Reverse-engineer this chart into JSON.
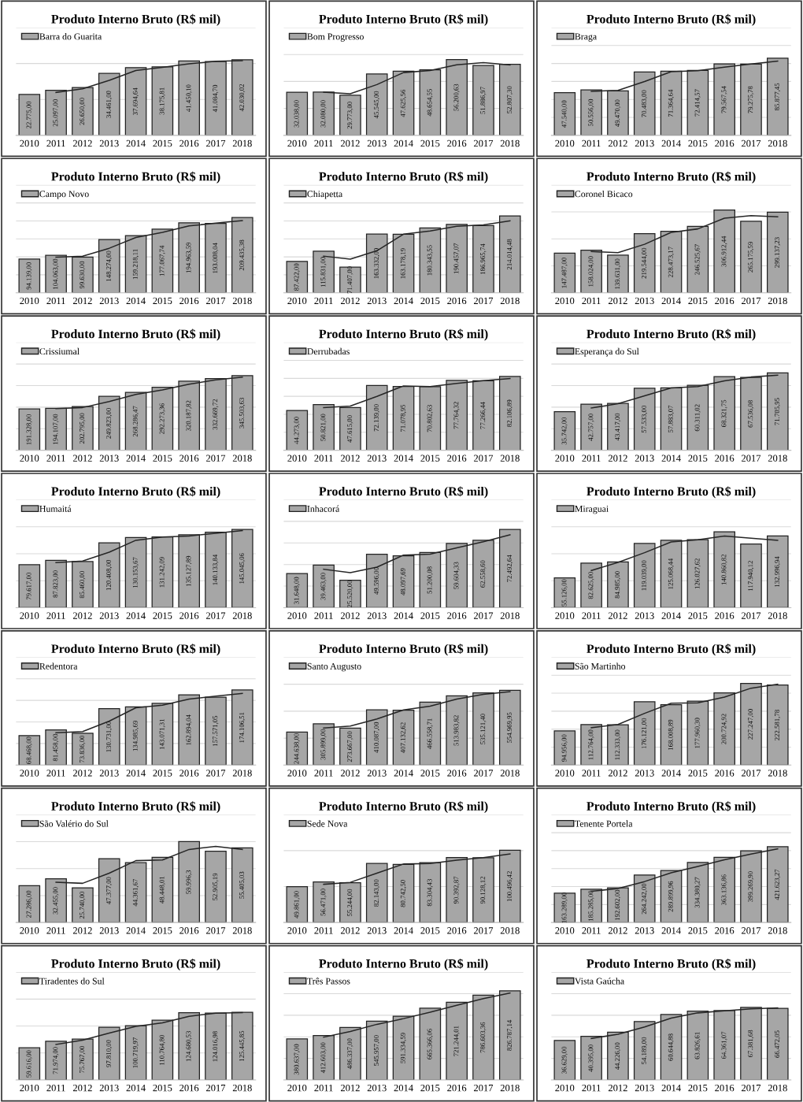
{
  "chart_data": [
    {
      "type": "bar",
      "title": "Produto Interno Bruto (R$ mil)",
      "categories": [
        "2010",
        "2011",
        "2012",
        "2013",
        "2014",
        "2015",
        "2016",
        "2017",
        "2018"
      ],
      "legend": "top left",
      "grid": "y",
      "ylim": [
        0,
        60000
      ],
      "yticks": [
        {
          "value": 0,
          "label": null
        },
        {
          "value": 20000,
          "label": null
        },
        {
          "value": 40000,
          "label": null
        },
        {
          "value": 60000,
          "label": null
        }
      ],
      "series": [
        {
          "name": "Barra do Guarita",
          "color": "#a6a6a6",
          "values": [
            22775.0,
            25097.0,
            26650.0,
            34461.0,
            37694.64,
            38175.81,
            41450.1,
            41084.7,
            42030.02
          ],
          "value_labels": [
            "22.775,00",
            "25.097,00",
            "26.650,00",
            "34.461,00",
            "37.694,64",
            "38.175,81",
            "41.450,10",
            "41.084,70",
            "42.030,02"
          ]
        },
        {
          "type": "line",
          "color": "#262626",
          "values": [
            null,
            23900,
            25900,
            30600,
            36100,
            37900,
            39800,
            41300,
            41600
          ]
        }
      ]
    },
    {
      "type": "bar",
      "title": "Produto Interno Bruto (R$ mil)",
      "categories": [
        "2010",
        "2011",
        "2012",
        "2013",
        "2014",
        "2015",
        "2016",
        "2017",
        "2018"
      ],
      "legend": "top left",
      "grid": "y",
      "ylim": [
        0,
        80000
      ],
      "yticks": [
        {
          "value": 0,
          "label": null
        },
        {
          "value": 20000,
          "label": null
        },
        {
          "value": 40000,
          "label": null
        },
        {
          "value": 60000,
          "label": null
        },
        {
          "value": 80000,
          "label": null
        }
      ],
      "series": [
        {
          "name": "Bom Progresso",
          "color": "#a6a6a6",
          "values": [
            32038.0,
            32080.0,
            29773.0,
            45545.0,
            47625.56,
            48654.55,
            56200.63,
            51886.97,
            52807.3
          ],
          "value_labels": [
            "32.038,00",
            "32.080,00",
            "29.773,00",
            "45.545,00",
            "47.625,56",
            "48.654,55",
            "56.200,63",
            "51.886,97",
            "52.807,30"
          ]
        },
        {
          "type": "line",
          "color": "#262626",
          "values": [
            null,
            32100,
            30900,
            37700,
            46600,
            48100,
            52400,
            54000,
            52300
          ]
        }
      ]
    },
    {
      "type": "bar",
      "title": "Produto Interno Bruto (R$ mil)",
      "categories": [
        "2010",
        "2011",
        "2012",
        "2013",
        "2014",
        "2015",
        "2016",
        "2017",
        "2018"
      ],
      "legend": "top left",
      "grid": "y",
      "ylim": [
        0,
        120000
      ],
      "yticks": [
        {
          "value": 0,
          "label": null
        },
        {
          "value": 20000,
          "label": null
        },
        {
          "value": 40000,
          "label": null
        },
        {
          "value": 60000,
          "label": null
        },
        {
          "value": 80000,
          "label": null
        },
        {
          "value": 100000,
          "label": null
        },
        {
          "value": 120000,
          "label": null
        }
      ],
      "series": [
        {
          "name": "Braga",
          "color": "#a6a6a6",
          "values": [
            47540.0,
            50556.0,
            49470.0,
            70483.0,
            71364.64,
            72414.57,
            79567.54,
            79275.78,
            85877.45
          ],
          "value_labels": [
            "47.540,00",
            "50.556,00",
            "49.470,00",
            "70.483,00",
            "71.364,64",
            "72.414,57",
            "79.567,54",
            "79.275,78",
            "85.877,45"
          ]
        },
        {
          "type": "line",
          "color": "#262626",
          "values": [
            null,
            49000,
            50000,
            60000,
            70900,
            71900,
            76000,
            79400,
            82600
          ]
        }
      ]
    },
    {
      "type": "bar",
      "title": "Produto Interno Bruto (R$ mil)",
      "categories": [
        "2010",
        "2011",
        "2012",
        "2013",
        "2014",
        "2015",
        "2016",
        "2017",
        "2018"
      ],
      "legend": "top left",
      "grid": "y",
      "ylim": [
        0,
        300000
      ],
      "yticks": [
        {
          "value": 0,
          "label": null
        },
        {
          "value": 50000,
          "label": null
        },
        {
          "value": 100000,
          "label": null
        },
        {
          "value": 150000,
          "label": null
        },
        {
          "value": 200000,
          "label": null
        },
        {
          "value": 250000,
          "label": null
        },
        {
          "value": 300000,
          "label": null
        }
      ],
      "series": [
        {
          "name": "Campo Novo",
          "color": "#a6a6a6",
          "values": [
            94139.0,
            104063.0,
            99630.0,
            148274.0,
            159218.11,
            177067.74,
            194963.59,
            193008.04,
            209435.38
          ],
          "value_labels": [
            "94.139,00",
            "104.063,00",
            "99.630,00",
            "148.274,00",
            "159.218,11",
            "177.067,74",
            "194.963,59",
            "193.008,04",
            "209.435,38"
          ]
        },
        {
          "type": "line",
          "color": "#262626",
          "values": [
            null,
            99100,
            101800,
            124000,
            154000,
            168000,
            186000,
            194000,
            201000
          ]
        }
      ]
    },
    {
      "type": "bar",
      "title": "Produto Interno Bruto (R$ mil)",
      "categories": [
        "2010",
        "2011",
        "2012",
        "2013",
        "2014",
        "2015",
        "2016",
        "2017",
        "2018"
      ],
      "legend": "top left",
      "grid": "y",
      "ylim": [
        0,
        300000
      ],
      "yticks": [
        {
          "value": 0,
          "label": null
        },
        {
          "value": 50000,
          "label": null
        },
        {
          "value": 100000,
          "label": null
        },
        {
          "value": 150000,
          "label": null
        },
        {
          "value": 200000,
          "label": null
        },
        {
          "value": 250000,
          "label": null
        },
        {
          "value": 300000,
          "label": null
        }
      ],
      "series": [
        {
          "name": "Chiapetta",
          "color": "#a6a6a6",
          "values": [
            87422.0,
            115831.0,
            71407.0,
            163332.0,
            163178.19,
            180343.55,
            190457.07,
            186965.74,
            214014.48
          ],
          "value_labels": [
            "87.422,00",
            "115.831,00",
            "71.407,00",
            "163.332,00",
            "163.178,19",
            "180.343,55",
            "190.457,07",
            "186.965,74",
            "214.014,48"
          ]
        },
        {
          "type": "line",
          "color": "#262626",
          "values": [
            null,
            102000,
            93600,
            117000,
            163000,
            172000,
            185000,
            189000,
            200000
          ]
        }
      ]
    },
    {
      "type": "bar",
      "title": "Produto Interno Bruto (R$ mil)",
      "categories": [
        "2010",
        "2011",
        "2012",
        "2013",
        "2014",
        "2015",
        "2016",
        "2017",
        "2018"
      ],
      "legend": "top left",
      "grid": "y",
      "ylim": [
        0,
        400000
      ],
      "yticks": [
        {
          "value": 0,
          "label": null
        },
        {
          "value": 100000,
          "label": null
        },
        {
          "value": 200000,
          "label": null
        },
        {
          "value": 300000,
          "label": null
        },
        {
          "value": 400000,
          "label": null
        }
      ],
      "series": [
        {
          "name": "Coronel Bicaco",
          "color": "#a6a6a6",
          "values": [
            147487.0,
            158024.0,
            139631.0,
            219544.0,
            228473.17,
            246525.67,
            306912.44,
            265175.59,
            299137.23
          ],
          "value_labels": [
            "147.487,00",
            "158.024,00",
            "139.631,00",
            "219.544,00",
            "228.473,17",
            "246.525,67",
            "306.912,44",
            "265.175,59",
            "299.137,23"
          ]
        },
        {
          "type": "line",
          "color": "#262626",
          "values": [
            null,
            153000,
            149000,
            180000,
            224000,
            237000,
            277000,
            286000,
            282000
          ]
        }
      ]
    },
    {
      "type": "bar",
      "title": "Produto Interno Bruto (R$ mil)",
      "categories": [
        "2010",
        "2011",
        "2012",
        "2013",
        "2014",
        "2015",
        "2016",
        "2017",
        "2018"
      ],
      "legend": "top left",
      "grid": "y",
      "ylim": [
        0,
        500000
      ],
      "yticks": [
        {
          "value": 0,
          "label": null
        },
        {
          "value": 100000,
          "label": null
        },
        {
          "value": 200000,
          "label": null
        },
        {
          "value": 300000,
          "label": null
        },
        {
          "value": 400000,
          "label": null
        },
        {
          "value": 500000,
          "label": null
        }
      ],
      "series": [
        {
          "name": "Crissiumal",
          "color": "#a6a6a6",
          "values": [
            191328.0,
            194107.0,
            202795.0,
            249823.0,
            268286.47,
            292273.36,
            320187.82,
            332669.72,
            345503.63
          ],
          "value_labels": [
            "191.328,00",
            "194.107,00",
            "202.795,00",
            "249.823,00",
            "268.286,47",
            "292.273,36",
            "320.187,82",
            "332.669,72",
            "345.503,63"
          ]
        },
        {
          "type": "line",
          "color": "#262626",
          "values": [
            null,
            193000,
            198000,
            226000,
            259000,
            280000,
            306000,
            326000,
            339000
          ]
        }
      ]
    },
    {
      "type": "bar",
      "title": "Produto Interno Bruto (R$ mil)",
      "categories": [
        "2010",
        "2011",
        "2012",
        "2013",
        "2014",
        "2015",
        "2016",
        "2017",
        "2018"
      ],
      "legend": "top left",
      "grid": "y",
      "ylim": [
        0,
        120000
      ],
      "yticks": [
        {
          "value": 0,
          "label": null
        },
        {
          "value": 20000,
          "label": null
        },
        {
          "value": 40000,
          "label": null
        },
        {
          "value": 60000,
          "label": null
        },
        {
          "value": 80000,
          "label": null
        },
        {
          "value": 100000,
          "label": null
        },
        {
          "value": 120000,
          "label": null
        }
      ],
      "series": [
        {
          "name": "Derrubadas",
          "color": "#a6a6a6",
          "values": [
            44273.0,
            50821.0,
            47615.0,
            72139.0,
            71078.95,
            70802.63,
            77764.32,
            77266.44,
            82106.89
          ],
          "value_labels": [
            "44.273,00",
            "50.821,00",
            "47.615,00",
            "72.139,00",
            "71.078,95",
            "70.802,63",
            "77.764,32",
            "77.266,44",
            "82.106,89"
          ]
        },
        {
          "type": "line",
          "color": "#262626",
          "values": [
            null,
            47500,
            49200,
            59900,
            71600,
            70900,
            74300,
            77500,
            79700
          ]
        }
      ]
    },
    {
      "type": "bar",
      "title": "Produto Interno Bruto (R$ mil)",
      "categories": [
        "2010",
        "2011",
        "2012",
        "2013",
        "2014",
        "2015",
        "2016",
        "2017",
        "2018"
      ],
      "legend": "top left",
      "grid": "y",
      "ylim": [
        0,
        100000
      ],
      "yticks": [
        {
          "value": 0,
          "label": null
        },
        {
          "value": 20000,
          "label": null
        },
        {
          "value": 40000,
          "label": null
        },
        {
          "value": 60000,
          "label": null
        },
        {
          "value": 80000,
          "label": null
        },
        {
          "value": 100000,
          "label": null
        }
      ],
      "series": [
        {
          "name": "Esperança do Sul",
          "color": "#a6a6a6",
          "values": [
            35742.0,
            42757.0,
            43417.0,
            57533.0,
            57883.07,
            60311.02,
            68321.75,
            67536.08,
            71705.95
          ],
          "value_labels": [
            "35.742,00",
            "42.757,00",
            "43.417,00",
            "57.533,00",
            "57.883,07",
            "60.311,02",
            "68.321,75",
            "67.536,08",
            "71.705,95"
          ]
        },
        {
          "type": "line",
          "color": "#262626",
          "values": [
            null,
            39200,
            43100,
            50500,
            57700,
            59100,
            64300,
            67900,
            69600
          ]
        }
      ]
    },
    {
      "type": "bar",
      "title": "Produto Interno Bruto (R$ mil)",
      "categories": [
        "2010",
        "2011",
        "2012",
        "2013",
        "2014",
        "2015",
        "2016",
        "2017",
        "2018"
      ],
      "legend": "top left",
      "grid": "y",
      "ylim": [
        0,
        200000
      ],
      "yticks": [
        {
          "value": 0,
          "label": null
        },
        {
          "value": 50000,
          "label": null
        },
        {
          "value": 100000,
          "label": null
        },
        {
          "value": 150000,
          "label": null
        },
        {
          "value": 200000,
          "label": null
        }
      ],
      "series": [
        {
          "name": "Humaitá",
          "color": "#a6a6a6",
          "values": [
            79617.0,
            87823.0,
            85460.0,
            120408.0,
            130153.67,
            131242.09,
            135127.89,
            140133.84,
            145045.06
          ],
          "value_labels": [
            "79.617,00",
            "87.823,00",
            "85.460,00",
            "120.408,00",
            "130.153,67",
            "131.242,09",
            "135.127,89",
            "140.133,84",
            "145.045,06"
          ]
        },
        {
          "type": "line",
          "color": "#262626",
          "values": [
            null,
            83700,
            86600,
            103000,
            125000,
            131000,
            133000,
            138000,
            143000
          ]
        }
      ]
    },
    {
      "type": "bar",
      "title": "Produto Interno Bruto (R$ mil)",
      "categories": [
        "2010",
        "2011",
        "2012",
        "2013",
        "2014",
        "2015",
        "2016",
        "2017",
        "2018"
      ],
      "legend": "top left",
      "grid": "y",
      "ylim": [
        0,
        100000
      ],
      "yticks": [
        {
          "value": 0,
          "label": null
        },
        {
          "value": 20000,
          "label": null
        },
        {
          "value": 40000,
          "label": null
        },
        {
          "value": 60000,
          "label": null
        },
        {
          "value": 80000,
          "label": null
        },
        {
          "value": 100000,
          "label": null
        }
      ],
      "series": [
        {
          "name": "Inhacorá",
          "color": "#a6a6a6",
          "values": [
            31648.0,
            39463.0,
            25520.0,
            49596.0,
            48097.69,
            51200.08,
            59604.33,
            62558.6,
            72492.64
          ],
          "value_labels": [
            "31.648,00",
            "39.463,00",
            "25.520,00",
            "49.596,00",
            "48.097,69",
            "51.200,08",
            "59.604,33",
            "62.558,60",
            "72.492,64"
          ]
        },
        {
          "type": "line",
          "color": "#262626",
          "values": [
            null,
            35600,
            32500,
            37600,
            48800,
            49600,
            55400,
            61100,
            67500
          ]
        }
      ]
    },
    {
      "type": "bar",
      "title": "Produto Interno Bruto (R$ mil)",
      "categories": [
        "2010",
        "2011",
        "2012",
        "2013",
        "2014",
        "2015",
        "2016",
        "2017",
        "2018"
      ],
      "legend": "top left",
      "grid": "y",
      "ylim": [
        0,
        200000
      ],
      "yticks": [
        {
          "value": 0,
          "label": null
        },
        {
          "value": 50000,
          "label": null
        },
        {
          "value": 100000,
          "label": null
        },
        {
          "value": 150000,
          "label": null
        },
        {
          "value": 200000,
          "label": null
        }
      ],
      "series": [
        {
          "name": "Miraguai",
          "color": "#a6a6a6",
          "values": [
            55126.0,
            82625.0,
            84985.0,
            119039.0,
            125068.44,
            126027.62,
            140860.82,
            117940.12,
            132996.94
          ],
          "value_labels": [
            "55.126,00",
            "82.625,00",
            "84.985,00",
            "119.039,00",
            "125.068,44",
            "126.027,62",
            "140.860,82",
            "117.940,12",
            "132.996,94"
          ]
        },
        {
          "type": "line",
          "color": "#262626",
          "values": [
            null,
            68900,
            83800,
            102000,
            122000,
            126000,
            133000,
            129000,
            125000
          ]
        }
      ]
    },
    {
      "type": "bar",
      "title": "Produto Interno Bruto (R$ mil)",
      "categories": [
        "2010",
        "2011",
        "2012",
        "2013",
        "2014",
        "2015",
        "2016",
        "2017",
        "2018"
      ],
      "legend": "top left",
      "grid": "y",
      "ylim": [
        0,
        250000
      ],
      "yticks": [
        {
          "value": 0,
          "label": null
        },
        {
          "value": 50000,
          "label": null
        },
        {
          "value": 100000,
          "label": null
        },
        {
          "value": 150000,
          "label": null
        },
        {
          "value": 200000,
          "label": null
        },
        {
          "value": 250000,
          "label": null
        }
      ],
      "series": [
        {
          "name": "Redentora",
          "color": "#a6a6a6",
          "values": [
            68468.0,
            81458.0,
            73836.0,
            130731.0,
            134985.69,
            143071.31,
            162894.04,
            157571.05,
            174106.51
          ],
          "value_labels": [
            "68.468,00",
            "81.458,00",
            "73.836,00",
            "130.731,00",
            "134.985,69",
            "143.071,31",
            "162.894,04",
            "157.571,05",
            "174.106,51"
          ]
        },
        {
          "type": "line",
          "color": "#262626",
          "values": [
            null,
            75000,
            77600,
            102000,
            133000,
            139000,
            153000,
            160000,
            166000
          ]
        }
      ]
    },
    {
      "type": "bar",
      "title": "Produto Interno Bruto (R$ mil)",
      "categories": [
        "2010",
        "2011",
        "2012",
        "2013",
        "2014",
        "2015",
        "2016",
        "2017",
        "2018"
      ],
      "legend": "top left",
      "grid": "y",
      "ylim": [
        0,
        800000
      ],
      "yticks": [
        {
          "value": 0,
          "label": null
        },
        {
          "value": 200000,
          "label": null
        },
        {
          "value": 400000,
          "label": null
        },
        {
          "value": 600000,
          "label": null
        },
        {
          "value": 800000,
          "label": null
        }
      ],
      "series": [
        {
          "name": "Santo Augusto",
          "color": "#a6a6a6",
          "values": [
            244638.0,
            305899.0,
            273667.0,
            410087.0,
            407132.62,
            466558.71,
            513983.82,
            535121.4,
            554969.95
          ],
          "value_labels": [
            "244.638,00",
            "305.899,00",
            "273.667,00",
            "410.087,00",
            "407.132,62",
            "466.558,71",
            "513.983,82",
            "535.121,40",
            "554.969,95"
          ]
        },
        {
          "type": "line",
          "color": "#262626",
          "values": [
            null,
            275000,
            290000,
            342000,
            409000,
            437000,
            490000,
            525000,
            545000
          ]
        }
      ]
    },
    {
      "type": "bar",
      "title": "Produto Interno Bruto (R$ mil)",
      "categories": [
        "2010",
        "2011",
        "2012",
        "2013",
        "2014",
        "2015",
        "2016",
        "2017",
        "2018"
      ],
      "legend": "top left",
      "grid": "y",
      "ylim": [
        0,
        300000
      ],
      "yticks": [
        {
          "value": 0,
          "label": null
        },
        {
          "value": 50000,
          "label": null
        },
        {
          "value": 100000,
          "label": null
        },
        {
          "value": 150000,
          "label": null
        },
        {
          "value": 200000,
          "label": null
        },
        {
          "value": 250000,
          "label": null
        },
        {
          "value": 300000,
          "label": null
        }
      ],
      "series": [
        {
          "name": "São Martinho",
          "color": "#a6a6a6",
          "values": [
            94956.0,
            112764.0,
            112333.0,
            176121.0,
            168008.89,
            177960.3,
            200724.92,
            227247.0,
            222581.78
          ],
          "value_labels": [
            "94.956,00",
            "112.764,00",
            "112.333,00",
            "176.121,00",
            "168.008,89",
            "177.960,30",
            "200.724,92",
            "227.247,00",
            "222.581,78"
          ]
        },
        {
          "type": "line",
          "color": "#262626",
          "values": [
            null,
            104000,
            113000,
            144000,
            172000,
            173000,
            189000,
            214000,
            225000
          ]
        }
      ]
    },
    {
      "type": "bar",
      "title": "Produto Interno Bruto (R$ mil)",
      "categories": [
        "2010",
        "2011",
        "2012",
        "2013",
        "2014",
        "2015",
        "2016",
        "2017",
        "2018"
      ],
      "legend": "top left",
      "grid": "y",
      "ylim": [
        0,
        80000
      ],
      "yticks": [
        {
          "value": 0,
          "label": null
        },
        {
          "value": 20000,
          "label": null
        },
        {
          "value": 40000,
          "label": null
        },
        {
          "value": 60000,
          "label": null
        },
        {
          "value": 80000,
          "label": null
        }
      ],
      "series": [
        {
          "name": "São Valério do Sul",
          "color": "#a6a6a6",
          "values": [
            27286.0,
            32455.0,
            25740.0,
            47377.0,
            44361.67,
            48448.01,
            59996.3,
            52905.19,
            55405.03
          ],
          "value_labels": [
            "27.286,00",
            "32.455,00",
            "25.740,00",
            "47.377,00",
            "44.361,67",
            "48.448,01",
            "59.996,3",
            "52.905,19",
            "55.405,03"
          ]
        },
        {
          "type": "line",
          "color": "#262626",
          "values": [
            null,
            29900,
            29100,
            36600,
            45900,
            46400,
            54200,
            56500,
            54200
          ]
        }
      ]
    },
    {
      "type": "bar",
      "title": "Produto Interno Bruto (R$ mil)",
      "categories": [
        "2010",
        "2011",
        "2012",
        "2013",
        "2014",
        "2015",
        "2016",
        "2017",
        "2018"
      ],
      "legend": "top left",
      "grid": "y",
      "ylim": [
        0,
        150000
      ],
      "yticks": [
        {
          "value": 0,
          "label": null
        },
        {
          "value": 50000,
          "label": null
        },
        {
          "value": 100000,
          "label": null
        },
        {
          "value": 150000,
          "label": null
        }
      ],
      "series": [
        {
          "name": "Sede Nova",
          "color": "#a6a6a6",
          "values": [
            49861.0,
            56471.0,
            55244.0,
            82143.0,
            80742.5,
            83304.43,
            90392.87,
            90128.12,
            100496.42
          ],
          "value_labels": [
            "49.861,00",
            "56.471,00",
            "55.244,00",
            "82.143,00",
            "80.742,50",
            "83.304,43",
            "90.392,87",
            "90.128,12",
            "100.496,42"
          ]
        },
        {
          "type": "line",
          "color": "#262626",
          "values": [
            null,
            53200,
            55900,
            68700,
            81400,
            82000,
            86800,
            90300,
            95300
          ]
        }
      ]
    },
    {
      "type": "bar",
      "title": "Produto Interno Bruto (R$ mil)",
      "categories": [
        "2010",
        "2011",
        "2012",
        "2013",
        "2014",
        "2015",
        "2016",
        "2017",
        "2018"
      ],
      "legend": "top left",
      "grid": "y",
      "ylim": [
        0,
        600000
      ],
      "yticks": [
        {
          "value": 0,
          "label": null
        },
        {
          "value": 100000,
          "label": null
        },
        {
          "value": 200000,
          "label": null
        },
        {
          "value": 300000,
          "label": null
        },
        {
          "value": 400000,
          "label": null
        },
        {
          "value": 500000,
          "label": null
        },
        {
          "value": 600000,
          "label": null
        }
      ],
      "series": [
        {
          "name": "Tenente Portela",
          "color": "#a6a6a6",
          "values": [
            163289.0,
            185285.0,
            192602.0,
            264242.0,
            289899.96,
            334380.27,
            363136.86,
            399269.9,
            421623.27
          ],
          "value_labels": [
            "163.289,00",
            "185.285,00",
            "192.602,00",
            "264.242,00",
            "289.899,96",
            "334.380,27",
            "363.136,86",
            "399.269,90",
            "421.623,27"
          ]
        },
        {
          "type": "line",
          "color": "#262626",
          "values": [
            null,
            174000,
            189000,
            228000,
            277000,
            312000,
            349000,
            381000,
            410000
          ]
        }
      ]
    },
    {
      "type": "bar",
      "title": "Produto Interno Bruto (R$ mil)",
      "categories": [
        "2010",
        "2011",
        "2012",
        "2013",
        "2014",
        "2015",
        "2016",
        "2017",
        "2018"
      ],
      "legend": "top left",
      "grid": "y",
      "ylim": [
        0,
        200000
      ],
      "yticks": [
        {
          "value": 0,
          "label": null
        },
        {
          "value": 50000,
          "label": null
        },
        {
          "value": 100000,
          "label": null
        },
        {
          "value": 150000,
          "label": null
        },
        {
          "value": 200000,
          "label": null
        }
      ],
      "series": [
        {
          "name": "Tiradentes do Sul",
          "color": "#a6a6a6",
          "values": [
            59616.0,
            71974.0,
            75767.0,
            97810.0,
            100719.97,
            110764.8,
            124680.53,
            124016.98,
            125445.85
          ],
          "value_labels": [
            "59.616,00",
            "71.974,00",
            "75.767,00",
            "97.810,00",
            "100.719,97",
            "110.764,80",
            "124.680,53",
            "124.016,98",
            "125.445,85"
          ]
        },
        {
          "type": "line",
          "color": "#262626",
          "values": [
            null,
            65800,
            73900,
            86800,
            99300,
            106000,
            118000,
            124000,
            125000
          ]
        }
      ]
    },
    {
      "type": "bar",
      "title": "Produto Interno Bruto (R$ mil)",
      "categories": [
        "2010",
        "2011",
        "2012",
        "2013",
        "2014",
        "2015",
        "2016",
        "2017",
        "2018"
      ],
      "legend": "top left",
      "grid": "y",
      "ylim": [
        0,
        1000000
      ],
      "yticks": [
        {
          "value": 0,
          "label": null
        },
        {
          "value": 200000,
          "label": null
        },
        {
          "value": 400000,
          "label": null
        },
        {
          "value": 600000,
          "label": null
        },
        {
          "value": 800000,
          "label": null
        },
        {
          "value": 1000000,
          "label": null
        }
      ],
      "series": [
        {
          "name": "Três Passos",
          "color": "#a6a6a6",
          "values": [
            380637.0,
            412603.0,
            486337.0,
            545957.0,
            591334.59,
            665366.06,
            721244.01,
            786603.36,
            826787.14
          ],
          "value_labels": [
            "380.637,00",
            "412.603,00",
            "486.337,00",
            "545.957,00",
            "591.334,59",
            "665.366,06",
            "721.244,01",
            "786.603,36",
            "826.787,14"
          ]
        },
        {
          "type": "line",
          "color": "#262626",
          "values": [
            null,
            397000,
            449000,
            516000,
            569000,
            628000,
            693000,
            754000,
            807000
          ]
        }
      ]
    },
    {
      "type": "bar",
      "title": "Produto Interno Bruto (R$ mil)",
      "categories": [
        "2010",
        "2011",
        "2012",
        "2013",
        "2014",
        "2015",
        "2016",
        "2017",
        "2018"
      ],
      "legend": "top left",
      "grid": "y",
      "ylim": [
        0,
        100000
      ],
      "yticks": [
        {
          "value": 0,
          "label": null
        },
        {
          "value": 20000,
          "label": null
        },
        {
          "value": 40000,
          "label": null
        },
        {
          "value": 60000,
          "label": null
        },
        {
          "value": 80000,
          "label": null
        },
        {
          "value": 100000,
          "label": null
        }
      ],
      "series": [
        {
          "name": "Vista Gaúcha",
          "color": "#a6a6a6",
          "values": [
            36629.0,
            40395.0,
            44226.0,
            54189.0,
            60644.88,
            63826.61,
            64361.07,
            67381.68,
            66472.05
          ],
          "value_labels": [
            "36.629,00",
            "40.395,00",
            "44.226,00",
            "54.189,00",
            "60.644,88",
            "63.826,61",
            "64.361,07",
            "67.381,68",
            "66.472,05"
          ]
        },
        {
          "type": "line",
          "color": "#262626",
          "values": [
            null,
            38500,
            42300,
            49200,
            57400,
            62200,
            64100,
            65900,
            66900
          ]
        }
      ]
    }
  ]
}
